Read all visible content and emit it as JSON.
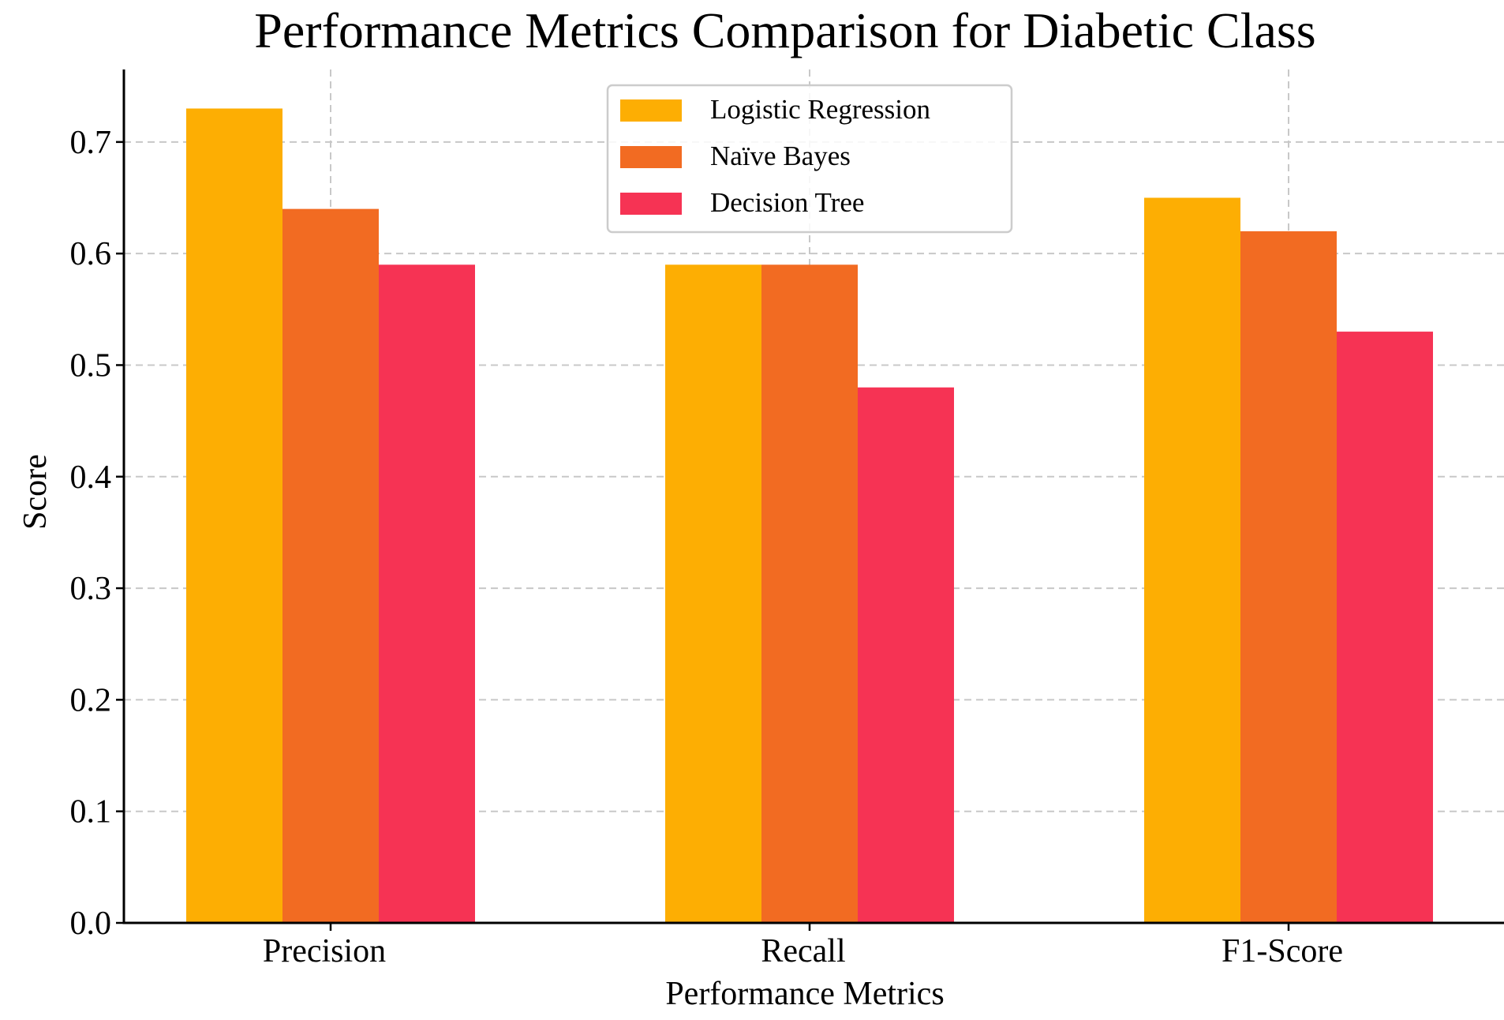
{
  "chart_data": {
    "type": "bar",
    "title": "Performance Metrics Comparison for Diabetic Class",
    "xlabel": "Performance Metrics",
    "ylabel": "Score",
    "categories": [
      "Precision",
      "Recall",
      "F1-Score"
    ],
    "series": [
      {
        "name": "Logistic Regression",
        "color": "#fdae03",
        "values": [
          0.73,
          0.59,
          0.65
        ]
      },
      {
        "name": "Naïve Bayes",
        "color": "#f26b22",
        "values": [
          0.64,
          0.59,
          0.62
        ]
      },
      {
        "name": "Decision Tree",
        "color": "#f63354",
        "values": [
          0.59,
          0.48,
          0.53
        ]
      }
    ],
    "ylim": [
      0,
      0.765
    ],
    "yticks": [
      "0.0",
      "0.1",
      "0.2",
      "0.3",
      "0.4",
      "0.5",
      "0.6",
      "0.7"
    ],
    "grid": true,
    "legend_position": "top-center"
  }
}
